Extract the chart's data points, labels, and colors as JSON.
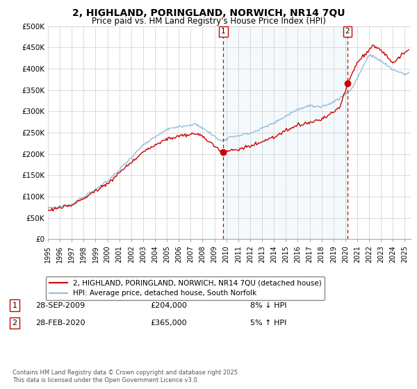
{
  "title": "2, HIGHLAND, PORINGLAND, NORWICH, NR14 7QU",
  "subtitle": "Price paid vs. HM Land Registry's House Price Index (HPI)",
  "ylabel_ticks": [
    "£0",
    "£50K",
    "£100K",
    "£150K",
    "£200K",
    "£250K",
    "£300K",
    "£350K",
    "£400K",
    "£450K",
    "£500K"
  ],
  "ytick_values": [
    0,
    50000,
    100000,
    150000,
    200000,
    250000,
    300000,
    350000,
    400000,
    450000,
    500000
  ],
  "ylim": [
    0,
    500000
  ],
  "xlim_start": 1995.0,
  "xlim_end": 2025.5,
  "line_color_hpi": "#94bcd8",
  "line_color_price": "#cc0000",
  "marker1_x": 2009.75,
  "marker1_y": 204000,
  "marker2_x": 2020.17,
  "marker2_y": 365000,
  "marker1_label": "1",
  "marker2_label": "2",
  "shade_color": "#d6e8f5",
  "legend_line1": "2, HIGHLAND, PORINGLAND, NORWICH, NR14 7QU (detached house)",
  "legend_line2": "HPI: Average price, detached house, South Norfolk",
  "annot1_date": "28-SEP-2009",
  "annot1_price": "£204,000",
  "annot1_hpi": "8% ↓ HPI",
  "annot2_date": "28-FEB-2020",
  "annot2_price": "£365,000",
  "annot2_hpi": "5% ↑ HPI",
  "footer": "Contains HM Land Registry data © Crown copyright and database right 2025.\nThis data is licensed under the Open Government Licence v3.0.",
  "background_color": "#ffffff",
  "grid_color": "#cccccc"
}
